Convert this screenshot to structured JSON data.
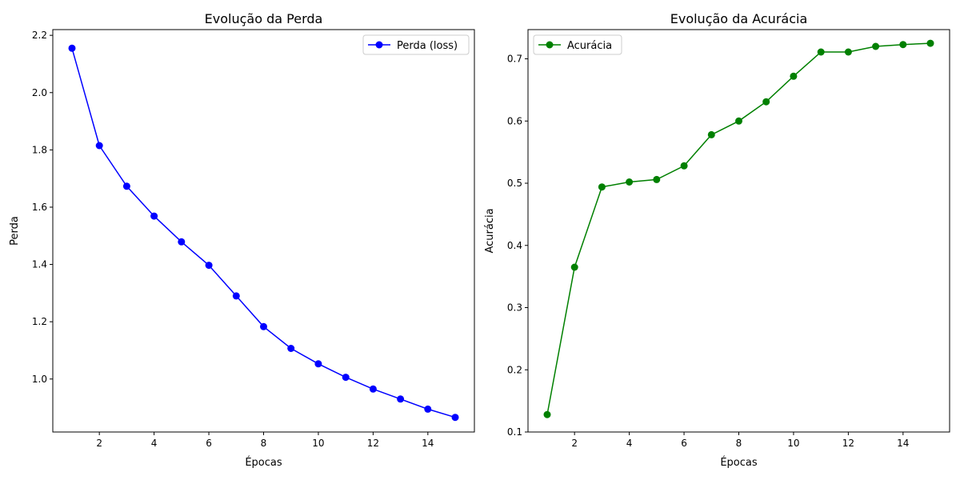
{
  "chart_data": [
    {
      "type": "line",
      "title": "Evolução da Perda",
      "xlabel": "Épocas",
      "ylabel": "Perda",
      "x": [
        1,
        2,
        3,
        4,
        5,
        6,
        7,
        8,
        9,
        10,
        11,
        12,
        13,
        14,
        15
      ],
      "xlim": [
        0.3,
        15.7
      ],
      "ylim": [
        0.815,
        2.22
      ],
      "xticks": [
        2,
        4,
        6,
        8,
        10,
        12,
        14
      ],
      "yticks": [
        1.0,
        1.2,
        1.4,
        1.6,
        1.8,
        2.0,
        2.2
      ],
      "ytick_labels": [
        "1.0",
        "1.2",
        "1.4",
        "1.6",
        "1.8",
        "2.0",
        "2.2"
      ],
      "grid": false,
      "legend_position": "upper right",
      "series": [
        {
          "name": "Perda (loss)",
          "color": "#0000ff",
          "marker": "circle",
          "values": [
            2.155,
            1.815,
            1.673,
            1.569,
            1.479,
            1.397,
            1.29,
            1.183,
            1.107,
            1.053,
            1.006,
            0.965,
            0.93,
            0.895,
            0.866
          ]
        }
      ]
    },
    {
      "type": "line",
      "title": "Evolução da Acurácia",
      "xlabel": "Épocas",
      "ylabel": "Acurácia",
      "x": [
        1,
        2,
        3,
        4,
        5,
        6,
        7,
        8,
        9,
        10,
        11,
        12,
        13,
        14,
        15
      ],
      "xlim": [
        0.3,
        15.7
      ],
      "ylim": [
        0.1,
        0.747
      ],
      "xticks": [
        2,
        4,
        6,
        8,
        10,
        12,
        14
      ],
      "yticks": [
        0.1,
        0.2,
        0.3,
        0.4,
        0.5,
        0.6,
        0.7
      ],
      "ytick_labels": [
        "0.1",
        "0.2",
        "0.3",
        "0.4",
        "0.5",
        "0.6",
        "0.7"
      ],
      "grid": false,
      "legend_position": "upper left",
      "series": [
        {
          "name": "Acurácia",
          "color": "#008000",
          "marker": "circle",
          "values": [
            0.128,
            0.365,
            0.494,
            0.502,
            0.506,
            0.528,
            0.578,
            0.6,
            0.631,
            0.672,
            0.711,
            0.711,
            0.72,
            0.723,
            0.725
          ]
        }
      ]
    }
  ]
}
